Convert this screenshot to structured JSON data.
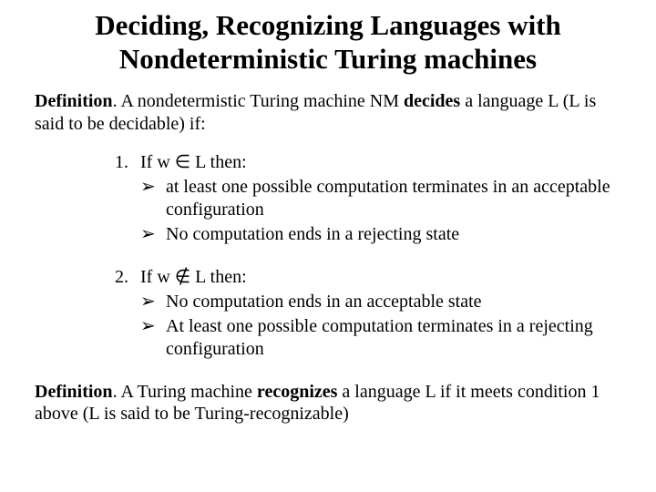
{
  "title_fontsize": 31,
  "body_fontsize": 20,
  "text_color": "#000000",
  "background_color": "#ffffff",
  "font_family": "Times New Roman",
  "title_line1": "Deciding, Recognizing Languages with",
  "title_line2": "Nondeterministic Turing machines",
  "def1_label": "Definition",
  "def1_text_a": ". A nondetermistic Turing machine NM  ",
  "def1_decides": "decides",
  "def1_text_b": " a language L (L is said to be decidable) if:",
  "item1_num": "1.",
  "item1_head": "If w ∈ L then:",
  "item1_sub1": "at least one possible computation terminates in an acceptable configuration",
  "item1_sub2": "No computation ends in a rejecting state",
  "item2_num": "2.",
  "item2_head": "If w ∉ L then:",
  "item2_sub1": "No computation ends in an acceptable state",
  "item2_sub2": "At least one possible computation terminates in a rejecting configuration",
  "arrow_glyph": "➢",
  "def2_label": "Definition",
  "def2_text_a": ". A Turing machine ",
  "def2_recognizes": "recognizes",
  "def2_text_b": " a language L if it meets condition 1 above (L is said to be Turing-recognizable)"
}
